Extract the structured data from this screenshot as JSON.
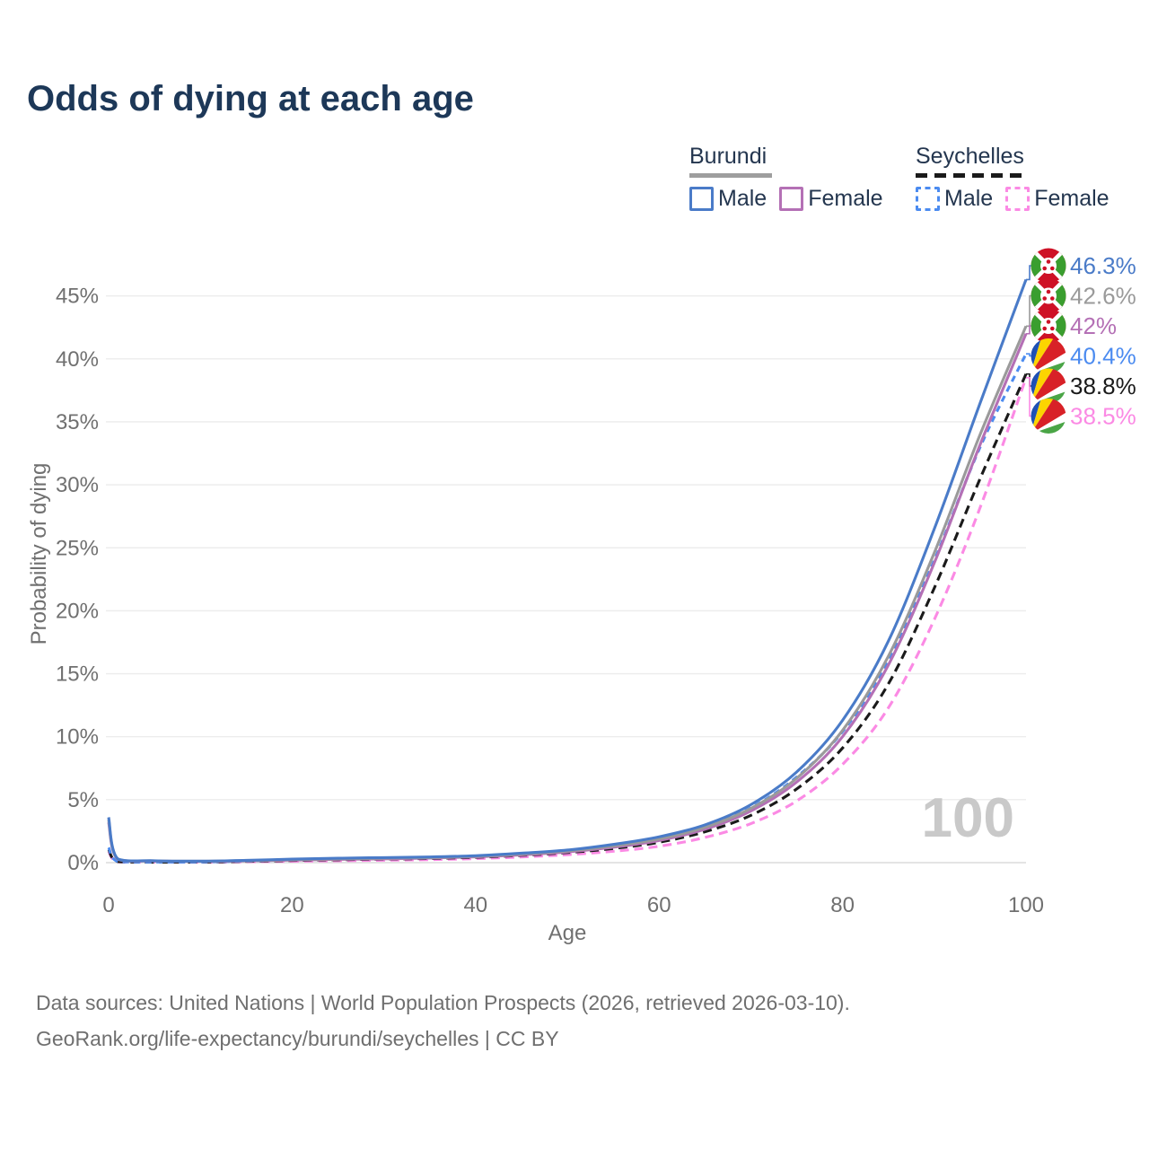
{
  "title": "Odds of dying at each age",
  "legend": {
    "groups": [
      {
        "label": "Burundi",
        "line_style": "solid",
        "underline_color": "#9e9e9e",
        "items": [
          {
            "label": "Male",
            "color": "#4a7bc8"
          },
          {
            "label": "Female",
            "color": "#b470b5"
          }
        ]
      },
      {
        "label": "Seychelles",
        "line_style": "dashed",
        "underline_color": "#1a1a1a",
        "items": [
          {
            "label": "Male",
            "color": "#4b8bf0"
          },
          {
            "label": "Female",
            "color": "#fb8ae4"
          }
        ]
      }
    ]
  },
  "watermark": "100",
  "footer": {
    "line1": "Data sources: United Nations | World Population Prospects (2026, retrieved 2026-03-10).",
    "line2": "GeoRank.org/life-expectancy/burundi/seychelles | CC BY"
  },
  "chart_data": {
    "type": "line",
    "title": "Odds of dying at each age",
    "xlabel": "Age",
    "ylabel": "Probability of dying",
    "xlim": [
      0,
      100
    ],
    "ylim": [
      0,
      47.5
    ],
    "x_ticks": [
      0,
      20,
      40,
      60,
      80,
      100
    ],
    "y_ticks": [
      0,
      5,
      10,
      15,
      20,
      25,
      30,
      35,
      40,
      45
    ],
    "y_tick_suffix": "%",
    "grid": "horizontal",
    "legend_position": "top-right",
    "x": [
      0,
      1,
      5,
      10,
      15,
      20,
      25,
      30,
      35,
      40,
      45,
      50,
      55,
      60,
      65,
      70,
      75,
      80,
      85,
      90,
      95,
      100
    ],
    "series": [
      {
        "id": "burundi-male",
        "name": "Burundi Male",
        "country": "Burundi",
        "sex": "Male",
        "color": "#4a7bc8",
        "line_style": "solid",
        "flag": "bdi",
        "flag_name": "burundi-flag",
        "end_label": "46.3%",
        "values": [
          3.6,
          0.3,
          0.15,
          0.12,
          0.18,
          0.28,
          0.35,
          0.4,
          0.45,
          0.55,
          0.75,
          1.0,
          1.45,
          2.05,
          3.0,
          4.6,
          7.2,
          11.3,
          17.6,
          26.5,
          36.5,
          46.3
        ]
      },
      {
        "id": "burundi-both",
        "name": "Burundi",
        "country": "Burundi",
        "sex": "Both",
        "color": "#9a9a9a",
        "line_style": "solid",
        "flag": "bdi",
        "flag_name": "burundi-flag",
        "end_label": "42.6%",
        "values": [
          3.4,
          0.28,
          0.14,
          0.11,
          0.16,
          0.24,
          0.3,
          0.35,
          0.4,
          0.5,
          0.68,
          0.92,
          1.32,
          1.88,
          2.8,
          4.3,
          6.7,
          10.5,
          16.4,
          24.6,
          34.0,
          42.6
        ]
      },
      {
        "id": "burundi-female",
        "name": "Burundi Female",
        "country": "Burundi",
        "sex": "Female",
        "color": "#b470b5",
        "line_style": "solid",
        "flag": "bdi",
        "flag_name": "burundi-flag",
        "end_label": "42%",
        "values": [
          3.2,
          0.26,
          0.13,
          0.1,
          0.14,
          0.2,
          0.26,
          0.3,
          0.36,
          0.46,
          0.62,
          0.85,
          1.22,
          1.76,
          2.65,
          4.1,
          6.4,
          10.0,
          15.7,
          23.8,
          33.2,
          42.0
        ]
      },
      {
        "id": "seychelles-male",
        "name": "Seychelles Male",
        "country": "Seychelles",
        "sex": "Male",
        "color": "#4b8bf0",
        "line_style": "dashed",
        "flag": "syc",
        "flag_name": "seychelles-flag",
        "end_label": "40.4%",
        "values": [
          1.2,
          0.09,
          0.05,
          0.05,
          0.12,
          0.22,
          0.3,
          0.36,
          0.42,
          0.52,
          0.7,
          0.95,
          1.35,
          1.9,
          2.85,
          4.35,
          6.8,
          10.4,
          16.0,
          24.0,
          33.0,
          40.4
        ]
      },
      {
        "id": "seychelles-both",
        "name": "Seychelles",
        "country": "Seychelles",
        "sex": "Both",
        "color": "#1a1a1a",
        "line_style": "dashed",
        "flag": "syc",
        "flag_name": "seychelles-flag",
        "end_label": "38.8%",
        "values": [
          1.05,
          0.08,
          0.04,
          0.04,
          0.1,
          0.17,
          0.23,
          0.28,
          0.33,
          0.42,
          0.58,
          0.8,
          1.12,
          1.62,
          2.45,
          3.75,
          5.85,
          9.1,
          14.2,
          21.8,
          30.5,
          38.8
        ]
      },
      {
        "id": "seychelles-female",
        "name": "Seychelles Female",
        "country": "Seychelles",
        "sex": "Female",
        "color": "#fb8ae4",
        "line_style": "dashed",
        "flag": "syc",
        "flag_name": "seychelles-flag",
        "end_label": "38.5%",
        "values": [
          0.9,
          0.07,
          0.04,
          0.03,
          0.07,
          0.11,
          0.15,
          0.19,
          0.24,
          0.32,
          0.45,
          0.63,
          0.9,
          1.3,
          2.0,
          3.1,
          4.9,
          7.8,
          12.3,
          19.3,
          28.2,
          38.5
        ]
      }
    ]
  }
}
